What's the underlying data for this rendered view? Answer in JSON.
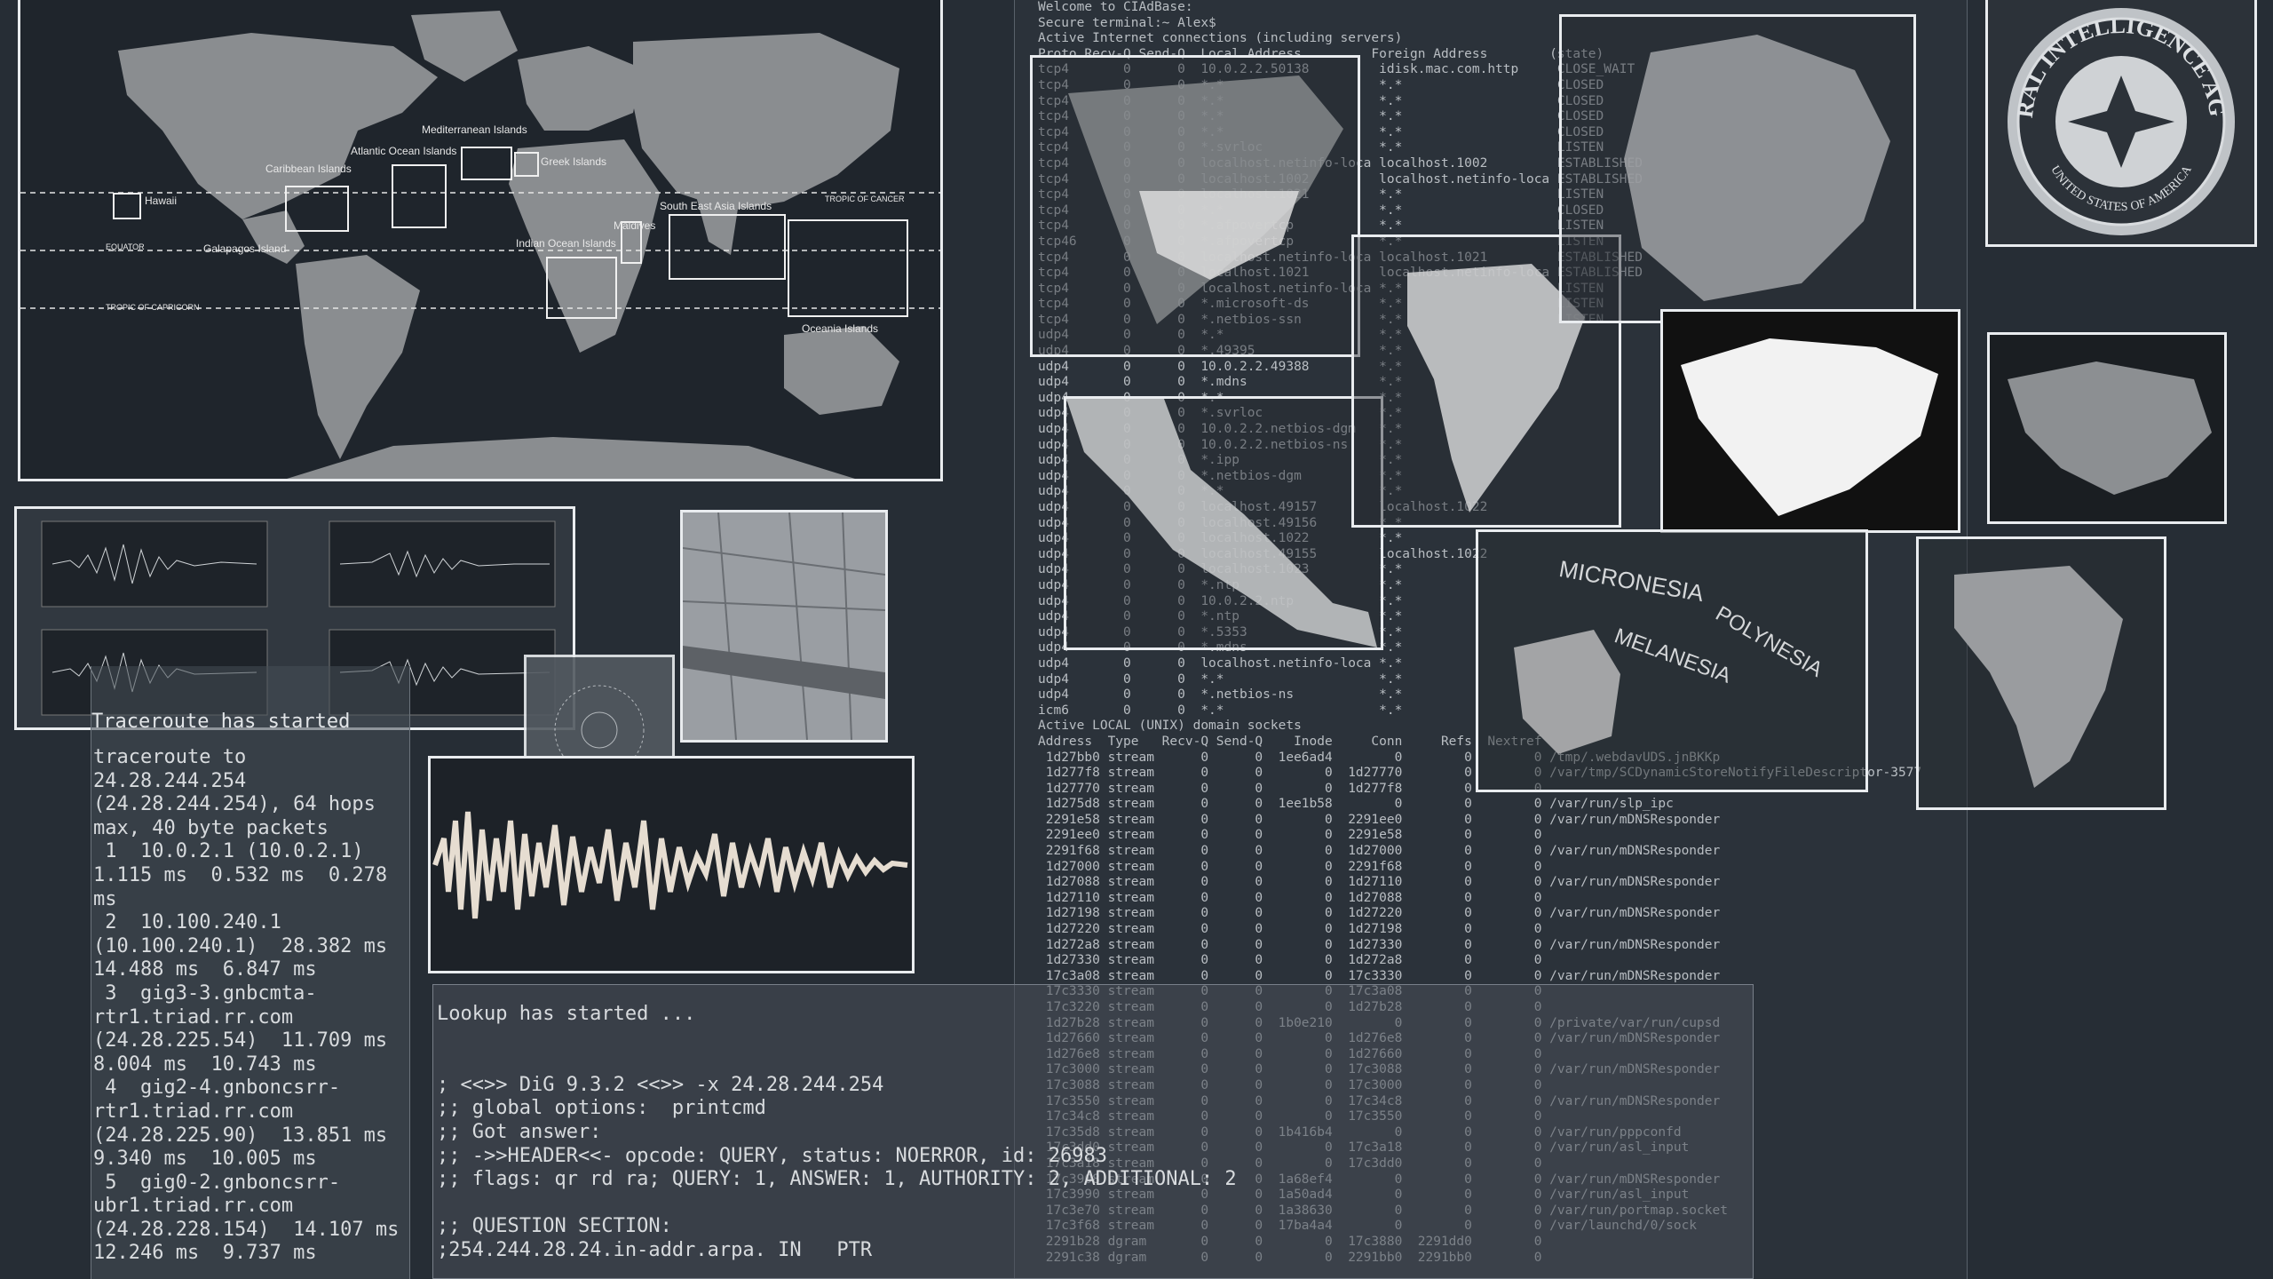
{
  "world_map": {
    "labels": [
      "Hawaii",
      "Caribbean Islands",
      "Atlantic Ocean Islands",
      "Mediterranean Islands",
      "Greek Islands",
      "Maldives",
      "Indian Ocean Islands",
      "South East Asia Islands",
      "TROPIC OF CANCER",
      "EQUATOR",
      "Galapagos Island",
      "TROPIC OF CAPRICORN",
      "Oceania Islands"
    ]
  },
  "netstat": {
    "lines": [
      "Welcome to CIAdBase:",
      "Secure terminal:~ Alex$",
      "Active Internet connections (including servers)",
      "Proto Recv-Q Send-Q  Local Address         Foreign Address        (state)",
      "tcp4       0      0  10.0.2.2.50138         idisk.mac.com.http     CLOSE_WAIT",
      "tcp4       0      0  *.*                    *.*                    CLOSED",
      "tcp4       0      0  *.*                    *.*                    CLOSED",
      "tcp4       0      0  *.*                    *.*                    CLOSED",
      "tcp4       0      0  *.*                    *.*                    CLOSED",
      "tcp4       0      0  *.svrloc               *.*                    LISTEN",
      "tcp4       0      0  localhost.netinfo-loca localhost.1002         ESTABLISHED",
      "tcp4       0      0  localhost.1002         localhost.netinfo-loca ESTABLISHED",
      "tcp4       0      0  localhost.1021         *.*                    LISTEN",
      "tcp4       0      0  *.*                    *.*                    CLOSED",
      "tcp4       0      0  *.afpovertcp           *.*                    LISTEN",
      "tcp46      0      0  *.afpovertcp           *.*                    LISTEN",
      "tcp4       0      0  localhost.netinfo-loca localhost.1021         ESTABLISHED",
      "tcp4       0      0  localhost.1021         localhost.netinfo-loca ESTABLISHED",
      "tcp4       0      0  localhost.netinfo-loca *.*                    LISTEN",
      "tcp4       0      0  *.microsoft-ds         *.*                    LISTEN",
      "tcp4       0      0  *.netbios-ssn          *.*                    LISTEN",
      "udp4       0      0  *.*                    *.*",
      "udp4       0      0  *.49395                *.*",
      "udp4       0      0  10.0.2.2.49388         *.*",
      "udp4       0      0  *.mdns                 *.*",
      "udp4       0      0  *.*                    *.*",
      "udp4       0      0  *.svrloc               *.*",
      "udp4       0      0  10.0.2.2.netbios-dgm   *.*",
      "udp4       0      0  10.0.2.2.netbios-ns    *.*",
      "udp4       0      0  *.ipp                  *.*",
      "udp4       0      0  *.netbios-dgm          *.*",
      "udp4       0      0  *.*                    *.*",
      "udp4       0      0  localhost.49157        localhost.1022",
      "udp4       0      0  localhost.49156        *.*",
      "udp4       0      0  localhost.1022         *.*",
      "udp4       0      0  localhost.49155        localhost.1022",
      "udp4       0      0  localhost.1023         *.*",
      "udp4       0      0  *.ntp                  *.*",
      "udp4       0      0  10.0.2.2.ntp           *.*",
      "udp4       0      0  *.ntp                  *.*",
      "udp4       0      0  *.5353                 *.*",
      "udp4       0      0  *.mdns                 *.*",
      "udp4       0      0  localhost.netinfo-loca *.*",
      "udp4       0      0  *.*                    *.*",
      "udp4       0      0  *.netbios-ns           *.*",
      "icm6       0      0  *.*                    *.*",
      "Active LOCAL (UNIX) domain sockets",
      "Address  Type   Recv-Q Send-Q    Inode     Conn     Refs  Nextref Addr",
      " 1d27bb0 stream      0      0  1ee6ad4        0        0        0 /tmp/.webdavUDS.jnBKKp",
      " 1d277f8 stream      0      0        0  1d27770        0        0 /var/tmp/SCDynamicStoreNotifyFileDescriptor-3577",
      " 1d27770 stream      0      0        0  1d277f8        0        0",
      " 1d275d8 stream      0      0  1ee1b58        0        0        0 /var/run/slp_ipc",
      " 2291e58 stream      0      0        0  2291ee0        0        0 /var/run/mDNSResponder",
      " 2291ee0 stream      0      0        0  2291e58        0        0",
      " 2291f68 stream      0      0        0  1d27000        0        0 /var/run/mDNSResponder",
      " 1d27000 stream      0      0        0  2291f68        0        0",
      " 1d27088 stream      0      0        0  1d27110        0        0 /var/run/mDNSResponder",
      " 1d27110 stream      0      0        0  1d27088        0        0",
      " 1d27198 stream      0      0        0  1d27220        0        0 /var/run/mDNSResponder",
      " 1d27220 stream      0      0        0  1d27198        0        0",
      " 1d272a8 stream      0      0        0  1d27330        0        0 /var/run/mDNSResponder",
      " 1d27330 stream      0      0        0  1d272a8        0        0",
      " 17c3a08 stream      0      0        0  17c3330        0        0 /var/run/mDNSResponder",
      " 17c3330 stream      0      0        0  17c3a08        0        0",
      " 17c3220 stream      0      0        0  1d27b28        0        0",
      " 1d27b28 stream      0      0  1b0e210        0        0        0 /private/var/run/cupsd",
      " 1d27660 stream      0      0        0  1d276e8        0        0 /var/run/mDNSResponder",
      " 1d276e8 stream      0      0        0  1d27660        0        0",
      " 17c3000 stream      0      0        0  17c3088        0        0 /var/run/mDNSResponder",
      " 17c3088 stream      0      0        0  17c3000        0        0",
      " 17c3550 stream      0      0        0  17c34c8        0        0 /var/run/mDNSResponder",
      " 17c34c8 stream      0      0        0  17c3550        0        0",
      " 17c35d8 stream      0      0  1b416b4        0        0        0 /var/run/pppconfd",
      " 17c3dd0 stream      0      0        0  17c3a18        0        0 /var/run/asl_input",
      " 17c3a18 stream      0      0        0  17c3dd0        0        0",
      " 17c3908 stream      0      0  1a68ef4        0        0        0 /var/run/mDNSResponder",
      " 17c3990 stream      0      0  1a50ad4        0        0        0 /var/run/asl_input",
      " 17c3e70 stream      0      0  1a38630        0        0        0 /var/run/portmap.socket",
      " 17c3f68 stream      0      0  17ba4a4        0        0        0 /var/launchd/0/sock",
      " 2291b28 dgram       0      0        0  17c3880  2291dd0        0",
      " 2291c38 dgram       0      0        0  2291bb0  2291bb0        0"
    ]
  },
  "traceroute": {
    "header": "Traceroute has started",
    "lines": [
      "traceroute to",
      "24.28.244.254",
      "(24.28.244.254), 64 hops",
      "max, 40 byte packets",
      " 1  10.0.2.1 (10.0.2.1)",
      "1.115 ms  0.532 ms  0.278",
      "ms",
      " 2  10.100.240.1",
      "(10.100.240.1)  28.382 ms",
      "14.488 ms  6.847 ms",
      " 3  gig3-3.gnbcmta-",
      "rtr1.triad.rr.com",
      "(24.28.225.54)  11.709 ms",
      "8.004 ms  10.743 ms",
      " 4  gig2-4.gnboncsrr-",
      "rtr1.triad.rr.com",
      "(24.28.225.90)  13.851 ms",
      "9.340 ms  10.005 ms",
      " 5  gig0-2.gnboncsrr-",
      "ubr1.triad.rr.com",
      "(24.28.228.154)  14.107 ms",
      "12.246 ms  9.737 ms"
    ]
  },
  "lookup": {
    "lines": [
      "Lookup has started ...",
      "",
      "",
      "; <<>> DiG 9.3.2 <<>> -x 24.28.244.254",
      ";; global options:  printcmd",
      ";; Got answer:",
      ";; ->>HEADER<<- opcode: QUERY, status: NOERROR, id: 26983",
      ";; flags: qr rd ra; QUERY: 1, ANSWER: 1, AUTHORITY: 2, ADDITIONAL: 2",
      "",
      ";; QUESTION SECTION:",
      ";254.244.28.24.in-addr.arpa. IN   PTR"
    ]
  },
  "oceania_map": {
    "labels": [
      "MICRONESIA",
      "MELANESIA",
      "POLYNESIA"
    ]
  },
  "seal": {
    "top_text": "CENTRAL INTELLIGENCE AGENCY",
    "bottom_text": "UNITED STATES OF AMERICA"
  },
  "colors": {
    "background": "#262d35",
    "border": "#e9ecef",
    "land": "#8a8d90",
    "terminal_text": "#b9bec3"
  }
}
